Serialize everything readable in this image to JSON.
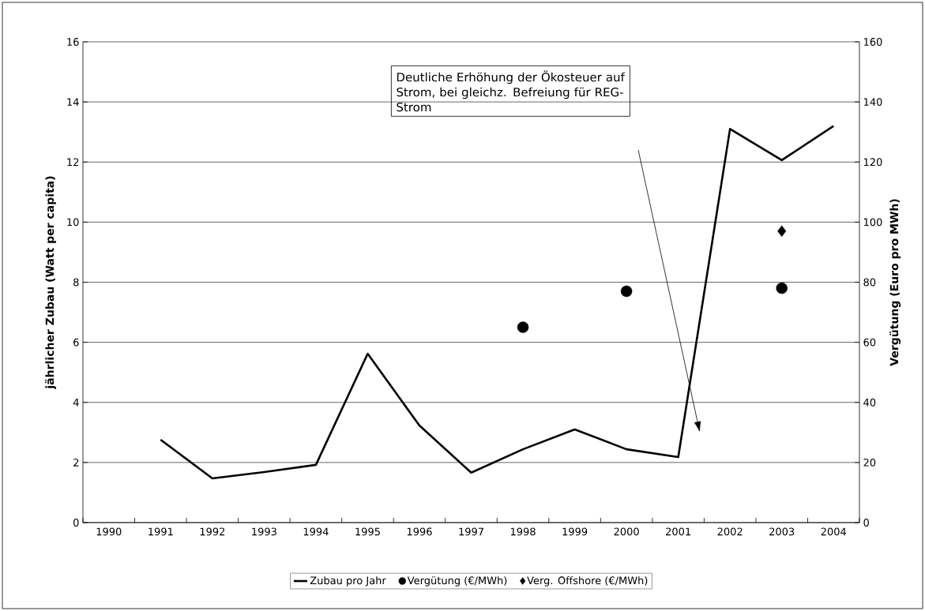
{
  "chart_data": {
    "type": "line",
    "categories": [
      "1990",
      "1991",
      "1992",
      "1993",
      "1994",
      "1995",
      "1996",
      "1997",
      "1998",
      "1999",
      "2000",
      "2001",
      "2002",
      "2003",
      "2004"
    ],
    "ylabel": "jährlicher Zubau (Watt per capita)",
    "y2label": "Vergütung (Euro pro MWh)",
    "ylim": [
      0,
      16
    ],
    "yticks": [
      0,
      2,
      4,
      6,
      8,
      10,
      12,
      14,
      16
    ],
    "y2lim": [
      0,
      160
    ],
    "y2ticks": [
      0,
      20,
      40,
      60,
      80,
      100,
      120,
      140,
      160
    ],
    "grid": "y",
    "legend": "bottom",
    "annotations": [
      "Deutliche Erhöhung der Ökosteuer auf Strom, bei gleichz. Befreiung für REG-Strom"
    ],
    "series": [
      {
        "name": "Zubau pro Jahr",
        "marker": "none",
        "color": "#000000",
        "values": [
          null,
          2.76,
          1.47,
          1.68,
          1.92,
          5.62,
          3.23,
          1.66,
          2.44,
          3.1,
          2.44,
          2.18,
          13.1,
          12.06,
          13.2
        ]
      },
      {
        "name": "Vergütung (€/MWh)",
        "type": "scatter",
        "marker": "circle",
        "axis": "y2",
        "color": "#000000",
        "values": [
          null,
          null,
          null,
          null,
          null,
          null,
          null,
          null,
          65,
          null,
          77,
          null,
          null,
          78,
          null
        ]
      },
      {
        "name": "Verg. Offshore (€/MWh)",
        "type": "scatter",
        "marker": "diamond",
        "axis": "y2",
        "color": "#000000",
        "values": [
          null,
          null,
          null,
          null,
          null,
          null,
          null,
          null,
          null,
          null,
          null,
          null,
          null,
          97,
          null
        ]
      }
    ]
  }
}
